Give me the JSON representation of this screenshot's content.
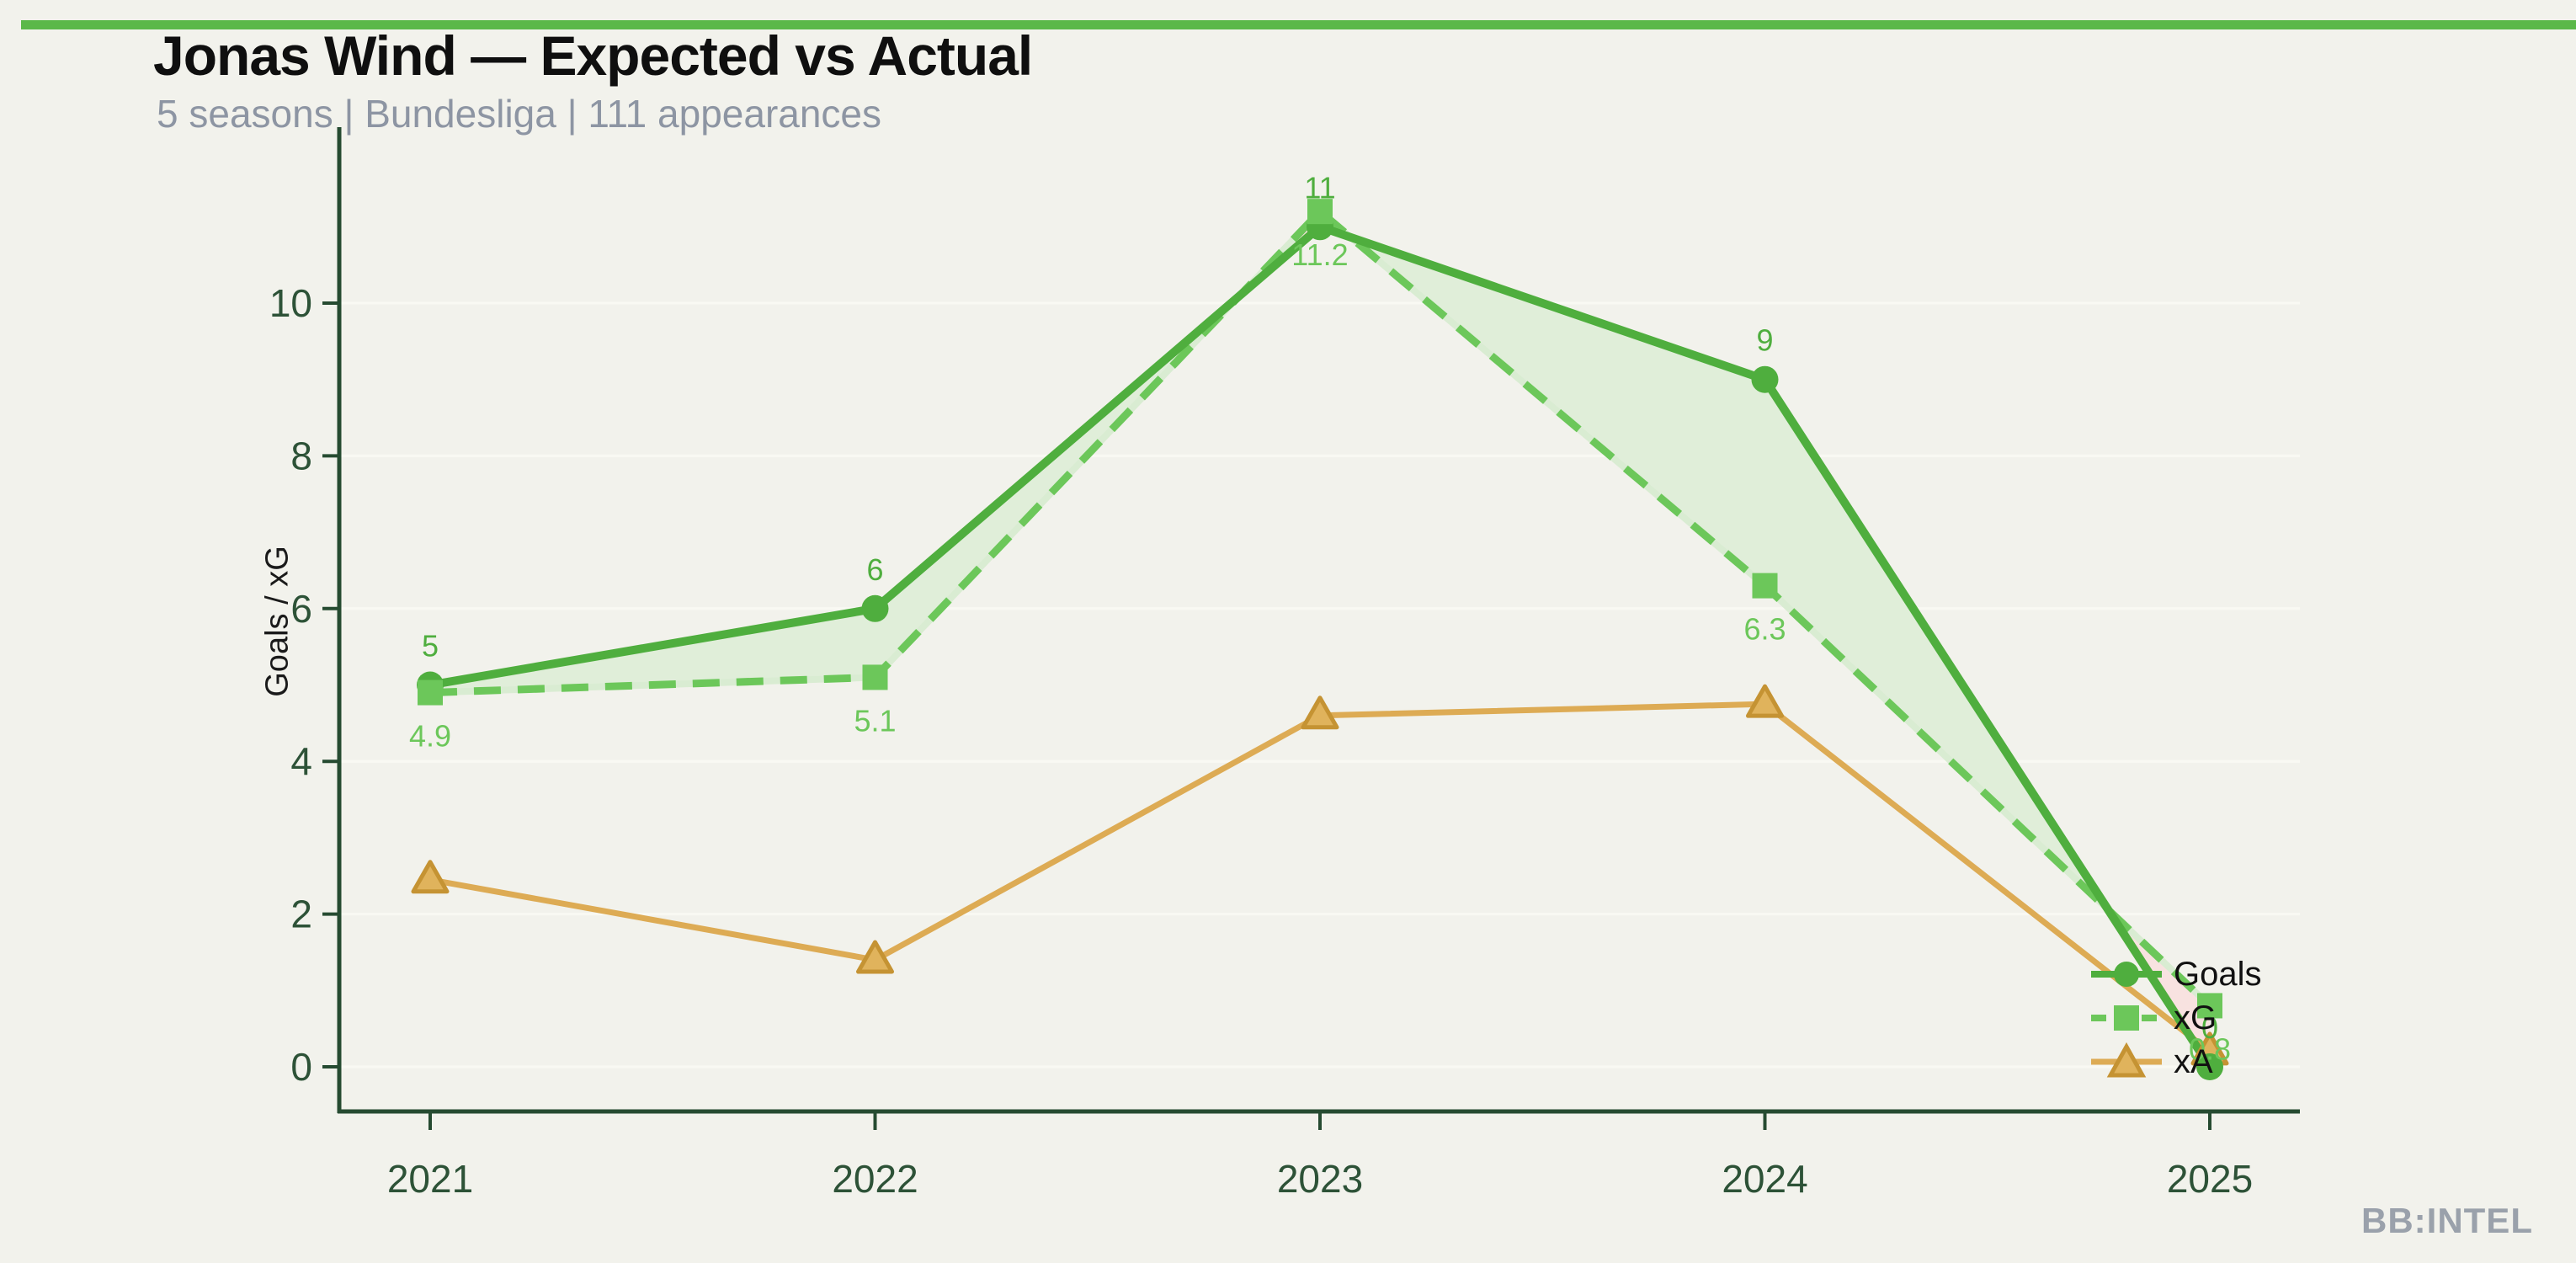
{
  "header": {
    "title": "Jonas Wind — Expected vs Actual",
    "subtitle": "5 seasons | Bundesliga | 111 appearances"
  },
  "branding": {
    "watermark": "BB:INTEL"
  },
  "colors": {
    "background": "#f2f2ec",
    "top_bar": "#5bb849",
    "axis": "#264b31",
    "tick_label": "#2d5237",
    "gridline": "#f9f9f3",
    "fill_goals_above": "#e0eed9",
    "fill_xg_above": "#f8e2e0",
    "subtitle": "#8d95a3",
    "watermark": "#9aa1ab"
  },
  "chart_data": {
    "type": "line",
    "title": "Jonas Wind — Expected vs Actual",
    "subtitle": "5 seasons | Bundesliga | 111 appearances",
    "categories": [
      "2021",
      "2022",
      "2023",
      "2024",
      "2025"
    ],
    "series": [
      {
        "name": "Goals",
        "values": [
          5,
          6,
          11,
          9,
          0
        ],
        "labels": [
          "5",
          "6",
          "11",
          "9",
          "0"
        ],
        "label_position": "above",
        "color": "#4fae3e",
        "marker": "circle",
        "style": "solid"
      },
      {
        "name": "xG",
        "values": [
          4.9,
          5.1,
          11.2,
          6.3,
          0.8
        ],
        "labels": [
          "4.9",
          "5.1",
          "11.2",
          "6.3",
          "0.8"
        ],
        "label_position": "below",
        "color": "#6cc75a",
        "underlay_color": "#d9ecd2",
        "marker": "square",
        "style": "dashed"
      },
      {
        "name": "xA",
        "values": [
          2.45,
          1.4,
          4.6,
          4.75,
          0.2
        ],
        "labels": [],
        "label_position": "none",
        "color": "#ddab54",
        "marker": "triangle",
        "marker_fill": "#e0b35c",
        "marker_edge": "#c59333",
        "style": "solid"
      }
    ],
    "xlabel": "",
    "ylabel": "Goals / xG",
    "yticks": [
      0,
      2,
      4,
      6,
      8,
      10
    ],
    "ytick_labels": [
      "0",
      "2",
      "4",
      "6",
      "8",
      "10"
    ],
    "ylim": [
      -0.6,
      12.3
    ],
    "grid": "horizontal",
    "fill_between": {
      "series_a": "Goals",
      "series_b": "xG"
    },
    "legend": {
      "position": "lower-right-inside",
      "entries": [
        "Goals",
        "xG",
        "xA"
      ]
    }
  }
}
